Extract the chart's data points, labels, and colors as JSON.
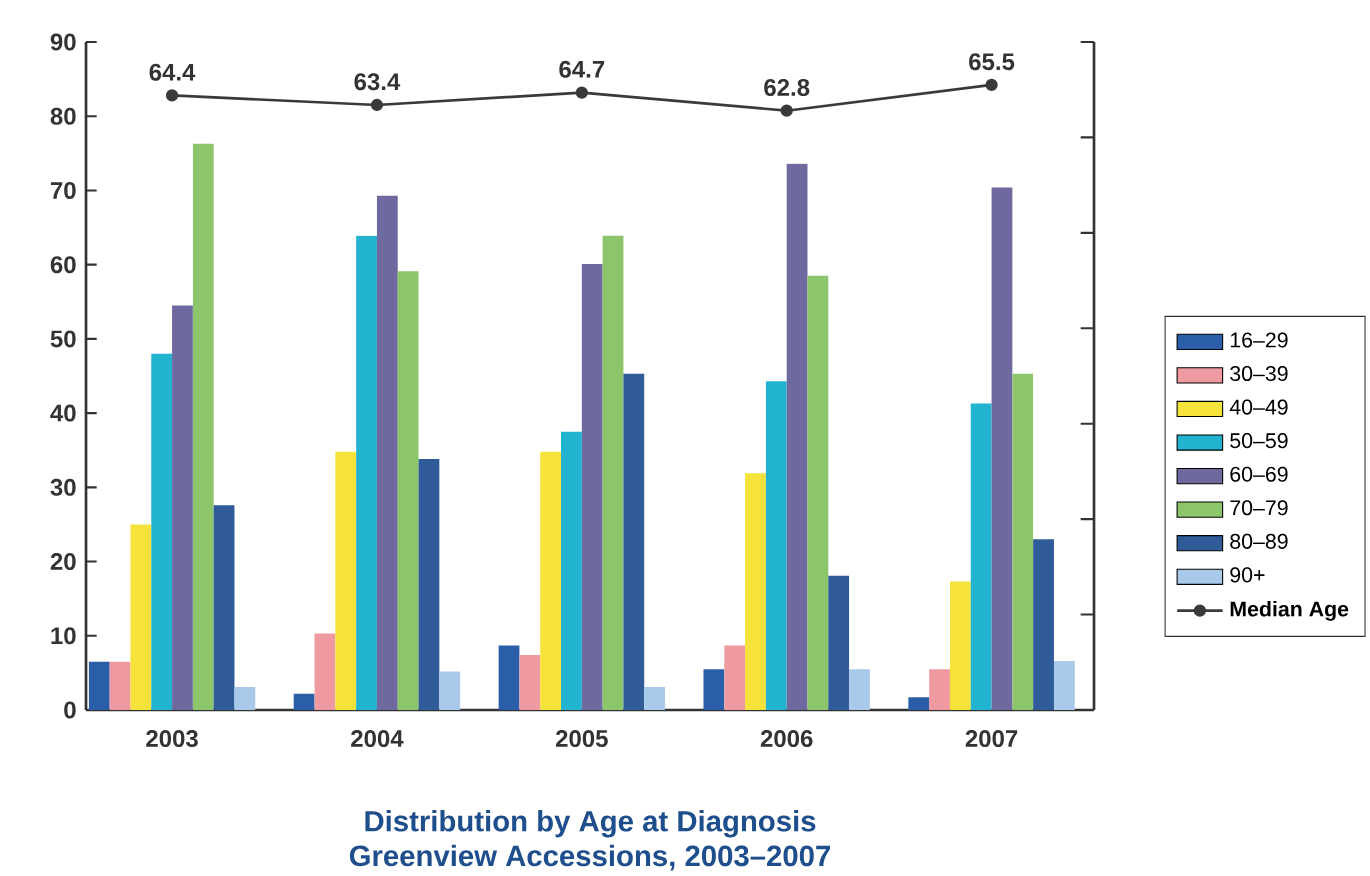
{
  "chart_data": {
    "type": "bar",
    "title": "Distribution by Age at Diagnosis",
    "subtitle": "Greenview Accessions, 2003–2007",
    "categories": [
      "2003",
      "2004",
      "2005",
      "2006",
      "2007"
    ],
    "series": [
      {
        "name": "16–29",
        "color": "#2a5ea8",
        "values": [
          6.5,
          2.2,
          8.7,
          5.5,
          1.7
        ]
      },
      {
        "name": "30–39",
        "color": "#ef9aa0",
        "values": [
          6.5,
          10.3,
          7.4,
          8.7,
          5.5
        ]
      },
      {
        "name": "40–49",
        "color": "#f5e23a",
        "values": [
          25,
          34.8,
          34.8,
          31.9,
          17.3
        ]
      },
      {
        "name": "50–59",
        "color": "#22b3d0",
        "values": [
          48,
          63.9,
          37.5,
          44.3,
          41.3
        ]
      },
      {
        "name": "60–69",
        "color": "#6e6aa0",
        "values": [
          54.5,
          69.3,
          60.1,
          73.6,
          70.4
        ]
      },
      {
        "name": "70–79",
        "color": "#8cc56a",
        "values": [
          76.3,
          59.1,
          63.9,
          58.5,
          45.3
        ]
      },
      {
        "name": "80–89",
        "color": "#2f5b99",
        "values": [
          27.6,
          33.8,
          45.3,
          18.1,
          23
        ]
      },
      {
        "name": "90+",
        "color": "#a9c9ea",
        "values": [
          3.1,
          5.2,
          3.1,
          5.5,
          6.6
        ]
      },
      {
        "name": "Median Age",
        "type": "line",
        "axis": "y2",
        "color": "#3a3a3a",
        "marker": "circle",
        "line_style": "solid",
        "values": [
          64.4,
          63.4,
          64.7,
          62.8,
          65.5
        ],
        "value_labels": [
          "64.4",
          "63.4",
          "64.7",
          "62.8",
          "65.5"
        ]
      }
    ],
    "ylim": [
      0,
      90
    ],
    "yticks": [
      0,
      10,
      20,
      30,
      40,
      50,
      60,
      70,
      80,
      90
    ],
    "y2lim": [
      0,
      70
    ],
    "y2ticks": [
      {
        "value": 0,
        "label": null
      },
      {
        "value": 10,
        "label": null
      },
      {
        "value": 20,
        "label": null
      },
      {
        "value": 30,
        "label": null
      },
      {
        "value": 40,
        "label": null
      },
      {
        "value": 50,
        "label": null
      },
      {
        "value": 60,
        "label": null
      },
      {
        "value": 70,
        "label": null
      }
    ],
    "grid": false,
    "legend": "right"
  }
}
